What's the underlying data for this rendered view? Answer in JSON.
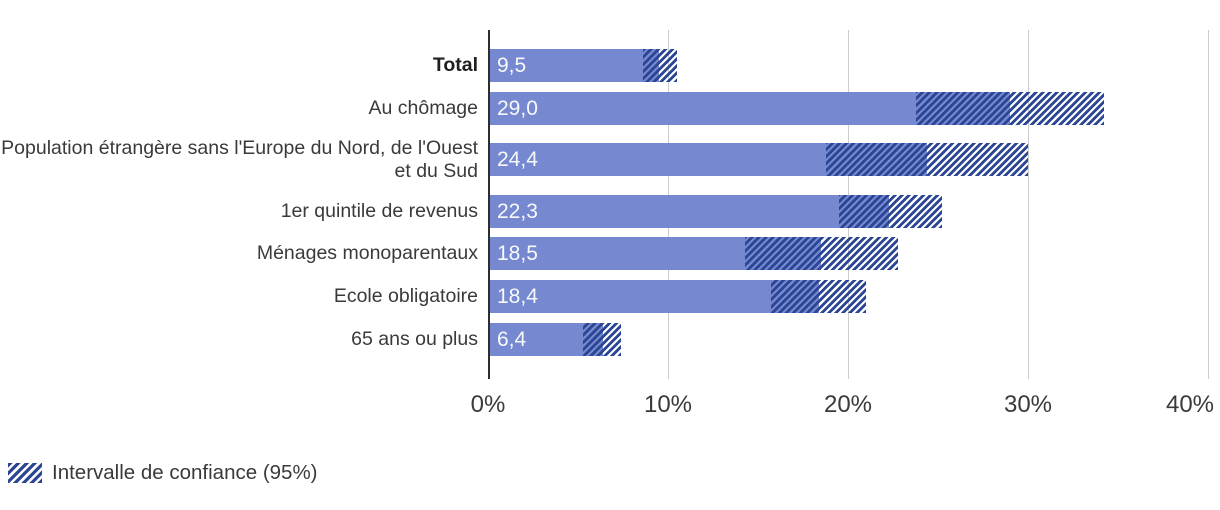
{
  "chart_data": {
    "type": "bar",
    "orientation": "horizontal",
    "title": "",
    "xlabel": "",
    "ylabel": "",
    "unit": "%",
    "decimal_separator": ",",
    "xlim": [
      0,
      40
    ],
    "x_ticks": [
      "0%",
      "10%",
      "20%",
      "30%",
      "40%"
    ],
    "grid": true,
    "legend": {
      "label": "Intervalle de confiance (95%)",
      "position": "bottom-left",
      "swatch": "diagonal-hatch"
    },
    "bars": [
      {
        "label": "Total",
        "bold": true,
        "value": 9.5,
        "value_label": "9,5",
        "ci_low": 8.6,
        "ci_high": 10.5
      },
      {
        "label": "Au chômage",
        "bold": false,
        "value": 29.0,
        "value_label": "29,0",
        "ci_low": 23.8,
        "ci_high": 34.2
      },
      {
        "label": "Population étrangère sans l'Europe du Nord, de l'Ouest et du Sud",
        "bold": false,
        "value": 24.4,
        "value_label": "24,4",
        "ci_low": 18.8,
        "ci_high": 30.0
      },
      {
        "label": "1er quintile de revenus",
        "bold": false,
        "value": 22.3,
        "value_label": "22,3",
        "ci_low": 19.5,
        "ci_high": 25.2
      },
      {
        "label": "Ménages monoparentaux",
        "bold": false,
        "value": 18.5,
        "value_label": "18,5",
        "ci_low": 14.3,
        "ci_high": 22.8
      },
      {
        "label": "Ecole obligatoire",
        "bold": false,
        "value": 18.4,
        "value_label": "18,4",
        "ci_low": 15.7,
        "ci_high": 21.0
      },
      {
        "label": "65 ans ou plus",
        "bold": false,
        "value": 6.4,
        "value_label": "6,4",
        "ci_low": 5.3,
        "ci_high": 7.4
      }
    ],
    "colors": {
      "bar": "#7688d0",
      "ci_hatch": "#2b4695",
      "grid": "#cccccc",
      "axis": "#2e2e2e",
      "value_text": "#ffffff",
      "label_text": "#3a3a3a",
      "background": "#ffffff"
    }
  }
}
